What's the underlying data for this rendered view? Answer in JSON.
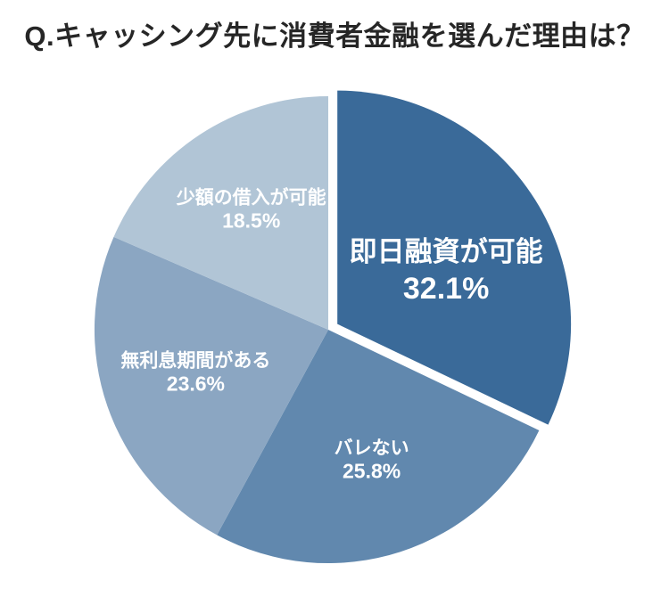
{
  "title": "Q.キャッシング先に消費者金融を選んだ理由は？",
  "chart_data": {
    "type": "pie",
    "title": "Q.キャッシング先に消費者金融を選んだ理由は？",
    "unit": "%",
    "start_angle_deg": 0,
    "clockwise": true,
    "labels_inside": true,
    "legend_position": "none",
    "background_color": "#ffffff",
    "label_text_color": "#ffffff",
    "slices": [
      {
        "label": "即日融資が可能",
        "value": 32.1,
        "pct_label": "32.1%",
        "color": "#3a6a99",
        "exploded": true,
        "emphasized": true
      },
      {
        "label": "バレない",
        "value": 25.8,
        "pct_label": "25.8%",
        "color": "#6188ae",
        "exploded": false,
        "emphasized": false
      },
      {
        "label": "無利息期間がある",
        "value": 23.6,
        "pct_label": "23.6%",
        "color": "#8ba6c2",
        "exploded": false,
        "emphasized": false
      },
      {
        "label": "少額の借入が可能",
        "value": 18.5,
        "pct_label": "18.5%",
        "color": "#b1c5d6",
        "exploded": false,
        "emphasized": false
      }
    ]
  }
}
